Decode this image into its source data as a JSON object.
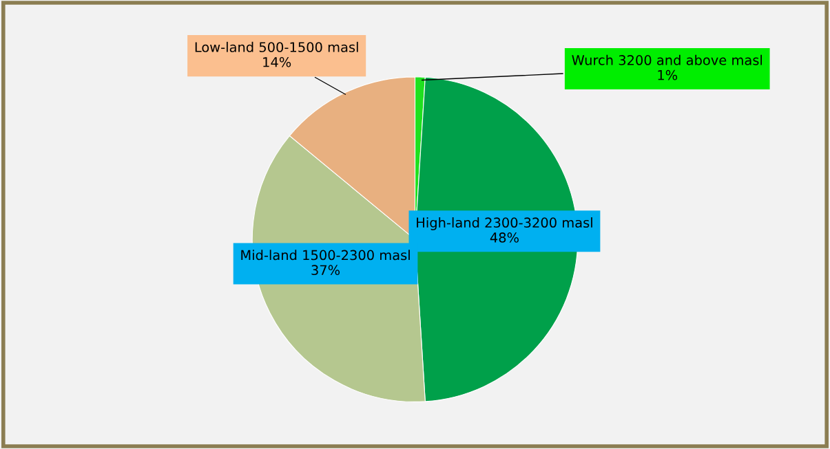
{
  "chart_data": {
    "type": "pie",
    "categories": [
      "Wurch 3200 and above masl",
      "High-land 2300-3200 masl",
      "Mid-land 1500-2300 masl",
      "Low-land 500-1500 masl"
    ],
    "values": [
      1,
      48,
      37,
      14
    ],
    "colors": [
      "#1fe01f",
      "#00a04a",
      "#b5c78f",
      "#e8b080"
    ],
    "value_labels": [
      "1%",
      "48%",
      "37%",
      "14%"
    ],
    "legend": false
  }
}
